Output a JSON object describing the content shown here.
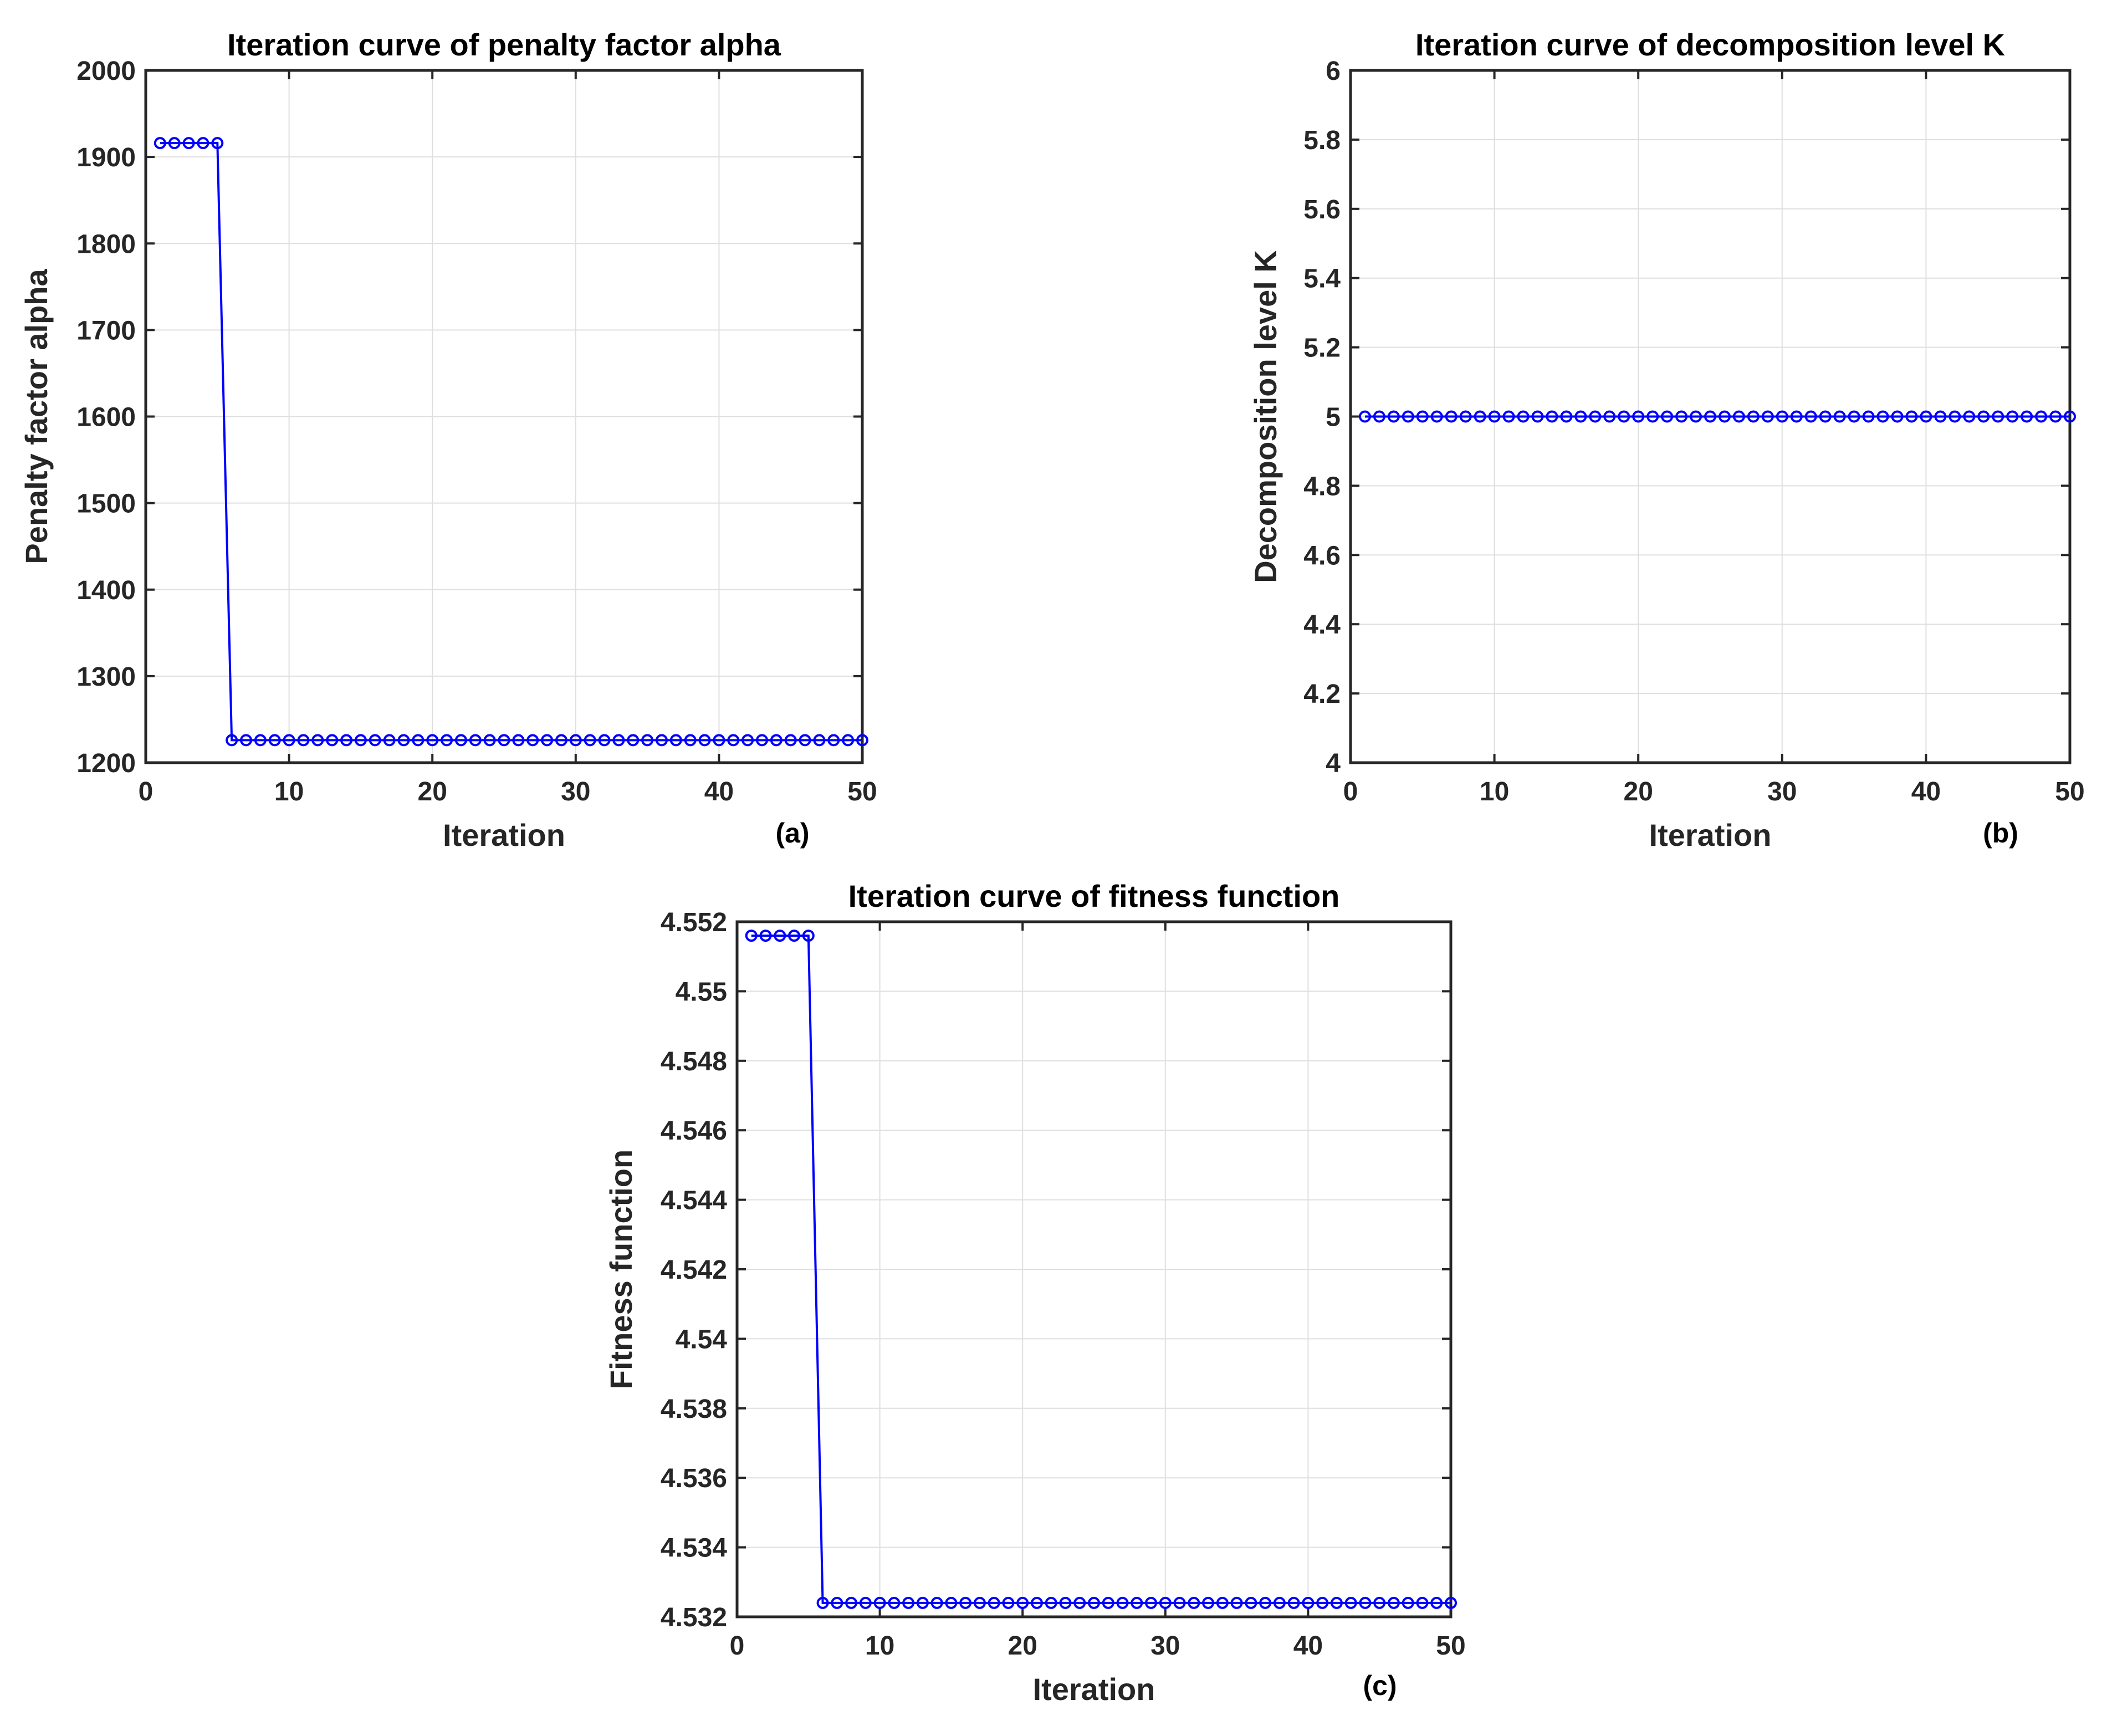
{
  "chart_data": [
    {
      "type": "line",
      "title": "Iteration curve of penalty factor alpha",
      "xlabel": "Iteration",
      "ylabel": "Penalty factor alpha",
      "panel_label": "(a)",
      "xlim": [
        0,
        50
      ],
      "ylim": [
        1200,
        2000
      ],
      "xticks": [
        0,
        10,
        20,
        30,
        40,
        50
      ],
      "yticks": [
        1200,
        1300,
        1400,
        1500,
        1600,
        1700,
        1800,
        1900,
        2000
      ],
      "ytick_labels": [
        "1200",
        "1300",
        "1400",
        "1500",
        "1600",
        "1700",
        "1800",
        "1900",
        "2000"
      ],
      "grid": true,
      "color": "#0000ff",
      "marker": "circle",
      "series": [
        {
          "x": [
            1,
            2,
            3,
            4,
            5,
            6,
            7,
            8,
            9,
            10,
            11,
            12,
            13,
            14,
            15,
            16,
            17,
            18,
            19,
            20,
            21,
            22,
            23,
            24,
            25,
            26,
            27,
            28,
            29,
            30,
            31,
            32,
            33,
            34,
            35,
            36,
            37,
            38,
            39,
            40,
            41,
            42,
            43,
            44,
            45,
            46,
            47,
            48,
            49,
            50
          ],
          "y": [
            1916,
            1916,
            1916,
            1916,
            1916,
            1226,
            1226,
            1226,
            1226,
            1226,
            1226,
            1226,
            1226,
            1226,
            1226,
            1226,
            1226,
            1226,
            1226,
            1226,
            1226,
            1226,
            1226,
            1226,
            1226,
            1226,
            1226,
            1226,
            1226,
            1226,
            1226,
            1226,
            1226,
            1226,
            1226,
            1226,
            1226,
            1226,
            1226,
            1226,
            1226,
            1226,
            1226,
            1226,
            1226,
            1226,
            1226,
            1226,
            1226,
            1226
          ]
        }
      ]
    },
    {
      "type": "line",
      "title": "Iteration curve of decomposition level K",
      "xlabel": "Iteration",
      "ylabel": "Decomposition level K",
      "panel_label": "(b)",
      "xlim": [
        0,
        50
      ],
      "ylim": [
        4,
        6
      ],
      "xticks": [
        0,
        10,
        20,
        30,
        40,
        50
      ],
      "yticks": [
        4,
        4.2,
        4.4,
        4.6,
        4.8,
        5,
        5.2,
        5.4,
        5.6,
        5.8,
        6
      ],
      "ytick_labels": [
        "4",
        "4.2",
        "4.4",
        "4.6",
        "4.8",
        "5",
        "5.2",
        "5.4",
        "5.6",
        "5.8",
        "6"
      ],
      "grid": true,
      "color": "#0000ff",
      "marker": "circle",
      "series": [
        {
          "x": [
            1,
            2,
            3,
            4,
            5,
            6,
            7,
            8,
            9,
            10,
            11,
            12,
            13,
            14,
            15,
            16,
            17,
            18,
            19,
            20,
            21,
            22,
            23,
            24,
            25,
            26,
            27,
            28,
            29,
            30,
            31,
            32,
            33,
            34,
            35,
            36,
            37,
            38,
            39,
            40,
            41,
            42,
            43,
            44,
            45,
            46,
            47,
            48,
            49,
            50
          ],
          "y": [
            5,
            5,
            5,
            5,
            5,
            5,
            5,
            5,
            5,
            5,
            5,
            5,
            5,
            5,
            5,
            5,
            5,
            5,
            5,
            5,
            5,
            5,
            5,
            5,
            5,
            5,
            5,
            5,
            5,
            5,
            5,
            5,
            5,
            5,
            5,
            5,
            5,
            5,
            5,
            5,
            5,
            5,
            5,
            5,
            5,
            5,
            5,
            5,
            5,
            5
          ]
        }
      ]
    },
    {
      "type": "line",
      "title": "Iteration curve of fitness function",
      "xlabel": "Iteration",
      "ylabel": "Fitness function",
      "panel_label": "(c)",
      "xlim": [
        0,
        50
      ],
      "ylim": [
        4.532,
        4.552
      ],
      "xticks": [
        0,
        10,
        20,
        30,
        40,
        50
      ],
      "yticks": [
        4.532,
        4.534,
        4.536,
        4.538,
        4.54,
        4.542,
        4.544,
        4.546,
        4.548,
        4.55,
        4.552
      ],
      "ytick_labels": [
        "4.532",
        "4.534",
        "4.536",
        "4.538",
        "4.54",
        "4.542",
        "4.544",
        "4.546",
        "4.548",
        "4.55",
        "4.552"
      ],
      "grid": true,
      "color": "#0000ff",
      "marker": "circle",
      "series": [
        {
          "x": [
            1,
            2,
            3,
            4,
            5,
            6,
            7,
            8,
            9,
            10,
            11,
            12,
            13,
            14,
            15,
            16,
            17,
            18,
            19,
            20,
            21,
            22,
            23,
            24,
            25,
            26,
            27,
            28,
            29,
            30,
            31,
            32,
            33,
            34,
            35,
            36,
            37,
            38,
            39,
            40,
            41,
            42,
            43,
            44,
            45,
            46,
            47,
            48,
            49,
            50
          ],
          "y": [
            4.5516,
            4.5516,
            4.5516,
            4.5516,
            4.5516,
            4.5324,
            4.5324,
            4.5324,
            4.5324,
            4.5324,
            4.5324,
            4.5324,
            4.5324,
            4.5324,
            4.5324,
            4.5324,
            4.5324,
            4.5324,
            4.5324,
            4.5324,
            4.5324,
            4.5324,
            4.5324,
            4.5324,
            4.5324,
            4.5324,
            4.5324,
            4.5324,
            4.5324,
            4.5324,
            4.5324,
            4.5324,
            4.5324,
            4.5324,
            4.5324,
            4.5324,
            4.5324,
            4.5324,
            4.5324,
            4.5324,
            4.5324,
            4.5324,
            4.5324,
            4.5324,
            4.5324,
            4.5324,
            4.5324,
            4.5324,
            4.5324,
            4.5324
          ]
        }
      ]
    }
  ]
}
